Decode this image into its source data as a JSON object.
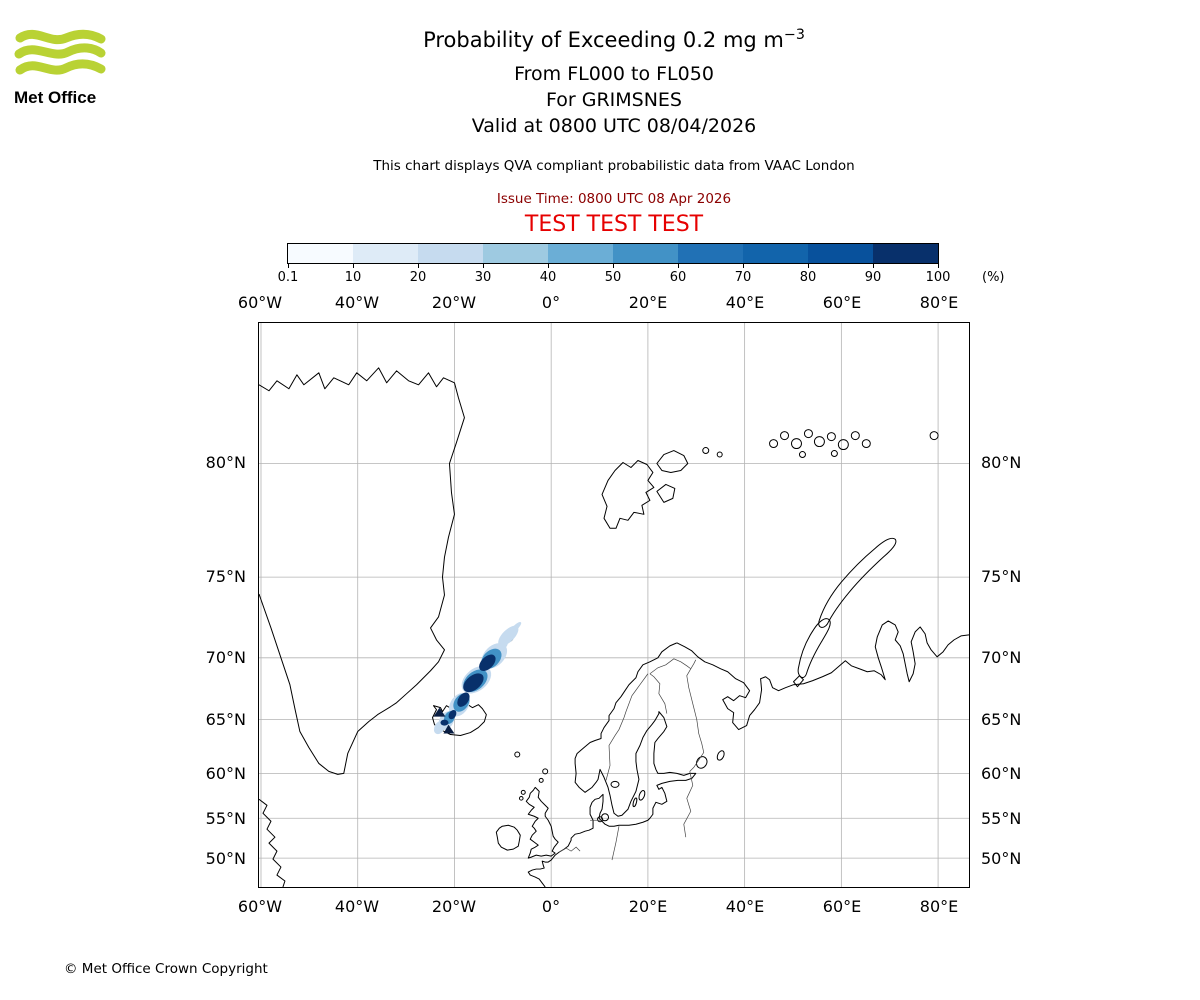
{
  "logo": {
    "text": "Met Office",
    "wave_color": "#b9d234"
  },
  "header": {
    "title_main": "Probability of Exceeding 0.2 mg m",
    "title_sup": "−3",
    "flight_levels": "From FL000 to FL050",
    "volcano": "For GRIMSNES",
    "valid": "Valid at 0800 UTC 08/04/2026",
    "info": "This chart displays QVA compliant probabilistic data from VAAC London",
    "issue": "Issue Time: 0800 UTC 08 Apr 2026",
    "issue_color": "#8b0000",
    "test_banner": "TEST TEST TEST",
    "test_color": "#e60000"
  },
  "colorbar": {
    "unit": "(%)",
    "tick_labels": [
      "0.1",
      "10",
      "20",
      "30",
      "40",
      "50",
      "60",
      "70",
      "80",
      "90",
      "100"
    ],
    "segment_colors": [
      "#f7fbff",
      "#deebf7",
      "#c6dbef",
      "#9ecae1",
      "#6baed6",
      "#4292c6",
      "#2171b5",
      "#1264ab",
      "#08519c",
      "#08306b"
    ]
  },
  "map": {
    "lon_labels": [
      "60°W",
      "40°W",
      "20°W",
      "0°",
      "20°E",
      "40°E",
      "60°E",
      "80°E"
    ],
    "lat_labels": [
      "80°N",
      "75°N",
      "70°N",
      "65°N",
      "60°N",
      "55°N",
      "50°N"
    ],
    "plume": {
      "low": "#c6dbef",
      "mid": "#4292c6",
      "high": "#08306b",
      "marker": "#0a1f44"
    }
  },
  "footer": {
    "copyright": "© Met Office Crown Copyright"
  }
}
